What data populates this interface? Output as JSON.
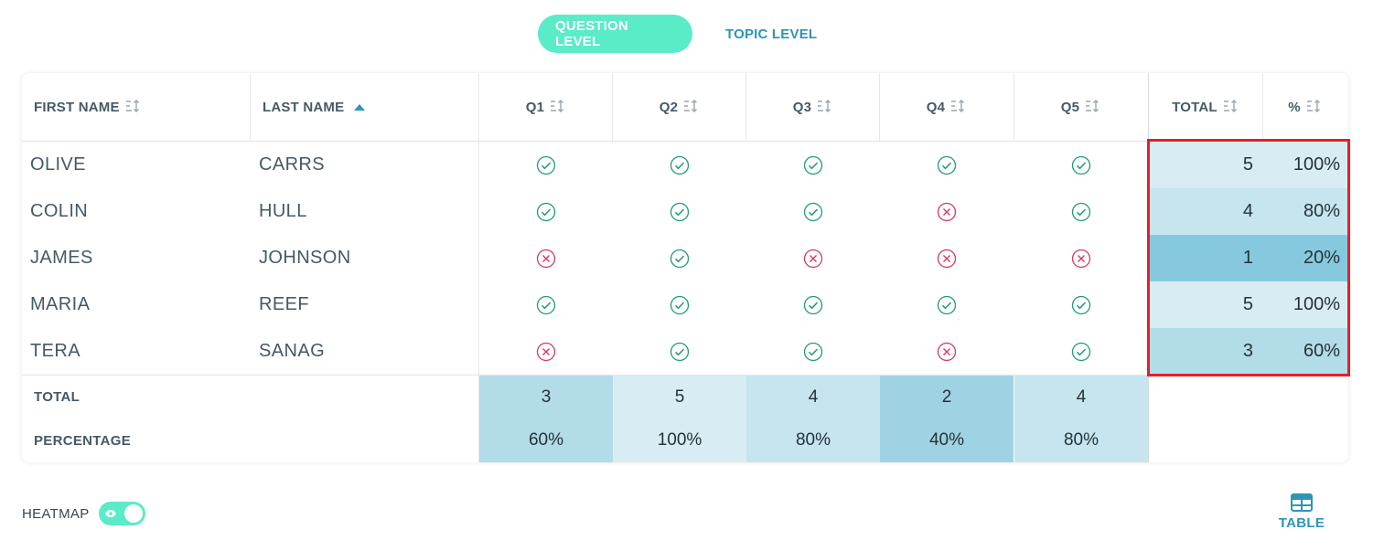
{
  "view_toggle": {
    "question_level": "QUESTION LEVEL",
    "topic_level": "TOPIC LEVEL"
  },
  "headers": {
    "first_name": "FIRST NAME",
    "last_name": "LAST NAME",
    "q1": "Q1",
    "q2": "Q2",
    "q3": "Q3",
    "q4": "Q4",
    "q5": "Q5",
    "total": "TOTAL",
    "percent": "%"
  },
  "rows": [
    {
      "first": "OLIVE",
      "last": "CARRS",
      "answers": [
        true,
        true,
        true,
        true,
        true
      ],
      "total": "5",
      "percent": "100%"
    },
    {
      "first": "COLIN",
      "last": "HULL",
      "answers": [
        true,
        true,
        true,
        false,
        true
      ],
      "total": "4",
      "percent": "80%"
    },
    {
      "first": "JAMES",
      "last": "JOHNSON",
      "answers": [
        false,
        true,
        false,
        false,
        false
      ],
      "total": "1",
      "percent": "20%"
    },
    {
      "first": "MARIA",
      "last": "REEF",
      "answers": [
        true,
        true,
        true,
        true,
        true
      ],
      "total": "5",
      "percent": "100%"
    },
    {
      "first": "TERA",
      "last": "SANAG",
      "answers": [
        false,
        true,
        true,
        false,
        true
      ],
      "total": "3",
      "percent": "60%"
    }
  ],
  "footer": {
    "total_label": "TOTAL",
    "percentage_label": "PERCENTAGE",
    "totals": [
      "3",
      "5",
      "4",
      "2",
      "4"
    ],
    "percentages": [
      "60%",
      "100%",
      "80%",
      "40%",
      "80%"
    ]
  },
  "heatmap": {
    "label": "HEATMAP",
    "enabled": true
  },
  "table_view": {
    "label": "TABLE"
  },
  "colors": {
    "accent_green": "#5aebc7",
    "accent_blue": "#2e95b5",
    "correct": "#1f9a7e",
    "incorrect": "#d23a66",
    "highlight_border": "#e2202c",
    "heat_lightest": "#d8edf3",
    "heat_light": "#c6e5ee",
    "heat_mid": "#b2dce8",
    "heat_strong": "#9fd3e3",
    "heat_darkest": "#86c9de"
  }
}
